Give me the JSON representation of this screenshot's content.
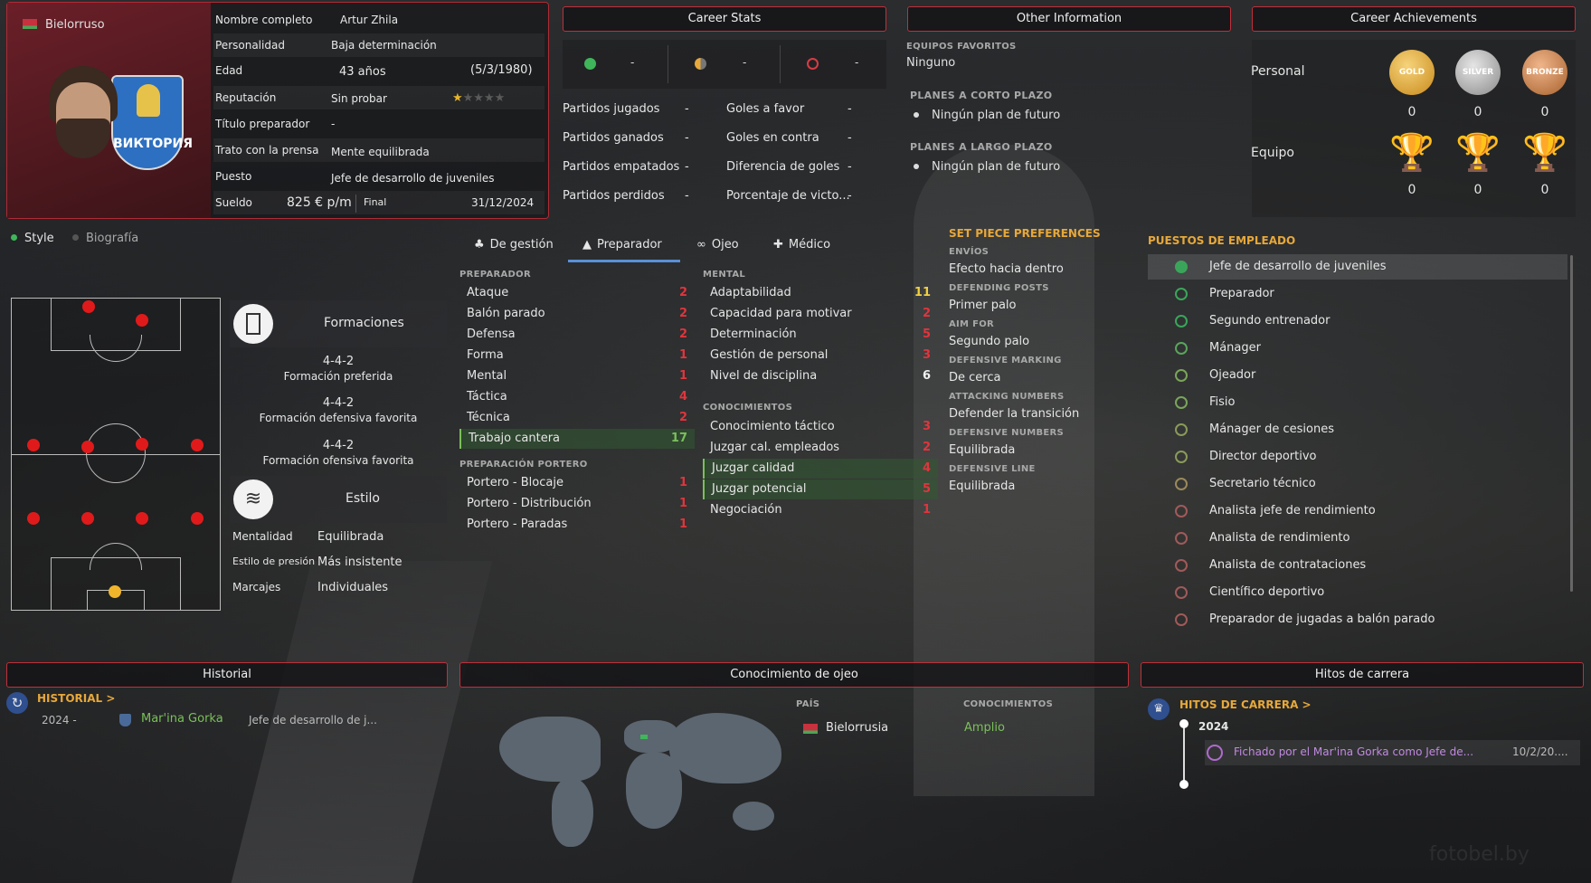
{
  "profile": {
    "nationality": "Bielorruso",
    "rows": [
      {
        "label": "Nombre completo",
        "value": "Artur Zhila"
      },
      {
        "label": "Personalidad",
        "value": "Baja determinación"
      },
      {
        "label": "Edad",
        "value": "43 años",
        "extra": "(5/3/1980)"
      },
      {
        "label": "Reputación",
        "value": "Sin probar"
      },
      {
        "label": "Título preparador",
        "value": "-"
      },
      {
        "label": "Trato con la prensa",
        "value": "Mente equilibrada"
      },
      {
        "label": "Puesto",
        "value": "Jefe de desarrollo de juveniles"
      }
    ],
    "salary_label": "Sueldo",
    "salary": "825 € p/m",
    "final_label": "Final",
    "final": "31/12/2024",
    "reputation_stars": 1,
    "club_crest_text": "ВИКТОРИЯ"
  },
  "career_stats": {
    "title": "Career Stats",
    "summary": [
      "-",
      "-",
      "-"
    ],
    "left": [
      {
        "label": "Partidos jugados",
        "value": "-"
      },
      {
        "label": "Partidos ganados",
        "value": "-"
      },
      {
        "label": "Partidos empatados",
        "value": "-"
      },
      {
        "label": "Partidos perdidos",
        "value": "-"
      }
    ],
    "right": [
      {
        "label": "Goles a favor",
        "value": "-"
      },
      {
        "label": "Goles en contra",
        "value": "-"
      },
      {
        "label": "Diferencia de goles",
        "value": "-"
      },
      {
        "label": "Porcentaje de victo...",
        "value": "-"
      }
    ]
  },
  "other_info": {
    "title": "Other Information",
    "fav_label": "EQUIPOS FAVORITOS",
    "fav_value": "Ninguno",
    "short_label": "PLANES A CORTO PLAZO",
    "short_value": "Ningún plan de futuro",
    "long_label": "PLANES A LARGO PLAZO",
    "long_value": "Ningún plan de futuro"
  },
  "achievements": {
    "title": "Career Achievements",
    "personal_label": "Personal",
    "team_label": "Equipo",
    "medals": [
      "GOLD",
      "SILVER",
      "BRONZE"
    ],
    "personal_counts": [
      "0",
      "0",
      "0"
    ],
    "team_counts": [
      "0",
      "0",
      "0"
    ]
  },
  "style_tabs": {
    "style": "Style",
    "bio": "Biografía"
  },
  "formations": {
    "title": "Formaciones",
    "items": [
      {
        "value": "4-4-2",
        "label": "Formación preferida"
      },
      {
        "value": "4-4-2",
        "label": "Formación defensiva favorita"
      },
      {
        "value": "4-4-2",
        "label": "Formación ofensiva favorita"
      }
    ]
  },
  "style": {
    "title": "Estilo",
    "rows": [
      {
        "label": "Mentalidad",
        "value": "Equilibrada"
      },
      {
        "label": "Estilo de presión",
        "value": "Más insistente"
      },
      {
        "label": "Marcajes",
        "value": "Individuales"
      }
    ]
  },
  "attr_tabs": [
    "De gestión",
    "Preparador",
    "Ojeo",
    "Médico"
  ],
  "attributes": {
    "coach_header": "PREPARADOR",
    "coach": [
      {
        "label": "Ataque",
        "value": "2"
      },
      {
        "label": "Balón parado",
        "value": "2"
      },
      {
        "label": "Defensa",
        "value": "2"
      },
      {
        "label": "Forma",
        "value": "1"
      },
      {
        "label": "Mental",
        "value": "1"
      },
      {
        "label": "Táctica",
        "value": "4"
      },
      {
        "label": "Técnica",
        "value": "2"
      },
      {
        "label": "Trabajo cantera",
        "value": "17"
      }
    ],
    "gk_header": "PREPARACIÓN PORTERO",
    "gk": [
      {
        "label": "Portero - Blocaje",
        "value": "1"
      },
      {
        "label": "Portero - Distribución",
        "value": "1"
      },
      {
        "label": "Portero - Paradas",
        "value": "1"
      }
    ],
    "mental_header": "MENTAL",
    "mental": [
      {
        "label": "Adaptabilidad",
        "value": "11"
      },
      {
        "label": "Capacidad para motivar",
        "value": "2"
      },
      {
        "label": "Determinación",
        "value": "5"
      },
      {
        "label": "Gestión de personal",
        "value": "3"
      },
      {
        "label": "Nivel de disciplina",
        "value": "6"
      }
    ],
    "know_header": "CONOCIMIENTOS",
    "know": [
      {
        "label": "Conocimiento táctico",
        "value": "3"
      },
      {
        "label": "Juzgar cal. empleados",
        "value": "2"
      },
      {
        "label": "Juzgar calidad",
        "value": "4"
      },
      {
        "label": "Juzgar potencial",
        "value": "5"
      },
      {
        "label": "Negociación",
        "value": "1"
      }
    ]
  },
  "set_piece": {
    "title": "SET PIECE PREFERENCES",
    "items": [
      {
        "label": "ENVÍOS",
        "value": "Efecto hacia dentro"
      },
      {
        "label": "DEFENDING POSTS",
        "value": "Primer palo"
      },
      {
        "label": "AIM FOR",
        "value": "Segundo palo"
      },
      {
        "label": "DEFENSIVE MARKING",
        "value": "De cerca"
      },
      {
        "label": "ATTACKING NUMBERS",
        "value": "Defender la transición"
      },
      {
        "label": "DEFENSIVE NUMBERS",
        "value": "Equilibrada"
      },
      {
        "label": "DEFENSIVE LINE",
        "value": "Equilibrada"
      }
    ]
  },
  "roles": {
    "title": "PUESTOS DE EMPLEADO",
    "items": [
      "Jefe de desarrollo de juveniles",
      "Preparador",
      "Segundo entrenador",
      "Mánager",
      "Ojeador",
      "Fisio",
      "Mánager de cesiones",
      "Director deportivo",
      "Secretario técnico",
      "Analista jefe de rendimiento",
      "Analista de rendimiento",
      "Analista de contrataciones",
      "Científico deportivo",
      "Preparador de jugadas a balón parado"
    ]
  },
  "history": {
    "title": "Historial",
    "link": "HISTORIAL >",
    "year": "2024 -",
    "club": "Mar'ina Gorka",
    "role": "Jefe de desarrollo de j..."
  },
  "scout": {
    "title": "Conocimiento de ojeo",
    "country_label": "PAÍS",
    "knowledge_label": "CONOCIMIENTOS",
    "country": "Bielorrusia",
    "knowledge": "Amplio"
  },
  "milestones": {
    "title": "Hitos de carrera",
    "link": "HITOS DE CARRERA >",
    "year": "2024",
    "text": "Fichado por el Mar'ina Gorka como Jefe de...",
    "date": "10/2/20...."
  },
  "watermark": "fotobel.by",
  "colors": {
    "accent_red": "#c0303a",
    "gold": "#e7a83a",
    "green": "#7ac05a"
  }
}
